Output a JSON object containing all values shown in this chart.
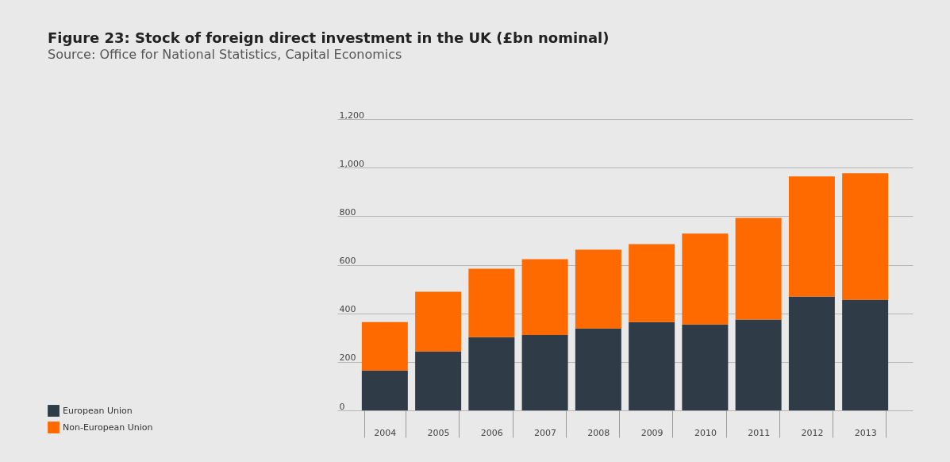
{
  "chart_data": {
    "type": "bar",
    "title": "Figure 23: Stock of foreign direct investment in the UK (£bn nominal)",
    "subtitle": "Source: Office for National Statistics, Capital Economics",
    "categories": [
      "2004",
      "2005",
      "2006",
      "2007",
      "2008",
      "2009",
      "2010",
      "2011",
      "2012",
      "2013"
    ],
    "stacked": true,
    "series": [
      {
        "name": "European Union",
        "color": "#2f3c48",
        "values": [
          164,
          243,
          302,
          311,
          338,
          364,
          354,
          374,
          469,
          456
        ]
      },
      {
        "name": "Non-European Union",
        "color": "#ff6a00",
        "values": [
          200,
          246,
          282,
          312,
          324,
          321,
          374,
          419,
          495,
          521
        ]
      }
    ],
    "ylim": [
      0,
      1200
    ],
    "yticks": [
      0,
      200,
      400,
      600,
      800,
      {
        "value": 1000,
        "label": "1,000"
      },
      {
        "value": 1200,
        "label": "1,200"
      }
    ],
    "grid": "y",
    "legend": "bottom left"
  }
}
